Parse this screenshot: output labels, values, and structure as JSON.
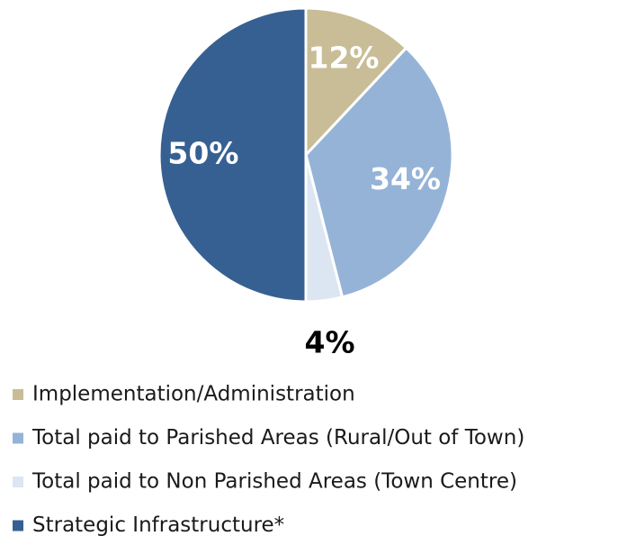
{
  "chart_data": {
    "type": "pie",
    "categories": [
      "Implementation/Administration",
      "Total paid to Parished Areas (Rural/Out of Town)",
      "Total paid to Non Parished Areas (Town Centre)",
      "Strategic Infrastructure*"
    ],
    "values": [
      12,
      34,
      4,
      50
    ],
    "value_labels": [
      "12%",
      "34%",
      "4%",
      "50%"
    ],
    "colors": [
      "#c8bd96",
      "#95b3d7",
      "#dce6f2",
      "#376092"
    ]
  }
}
